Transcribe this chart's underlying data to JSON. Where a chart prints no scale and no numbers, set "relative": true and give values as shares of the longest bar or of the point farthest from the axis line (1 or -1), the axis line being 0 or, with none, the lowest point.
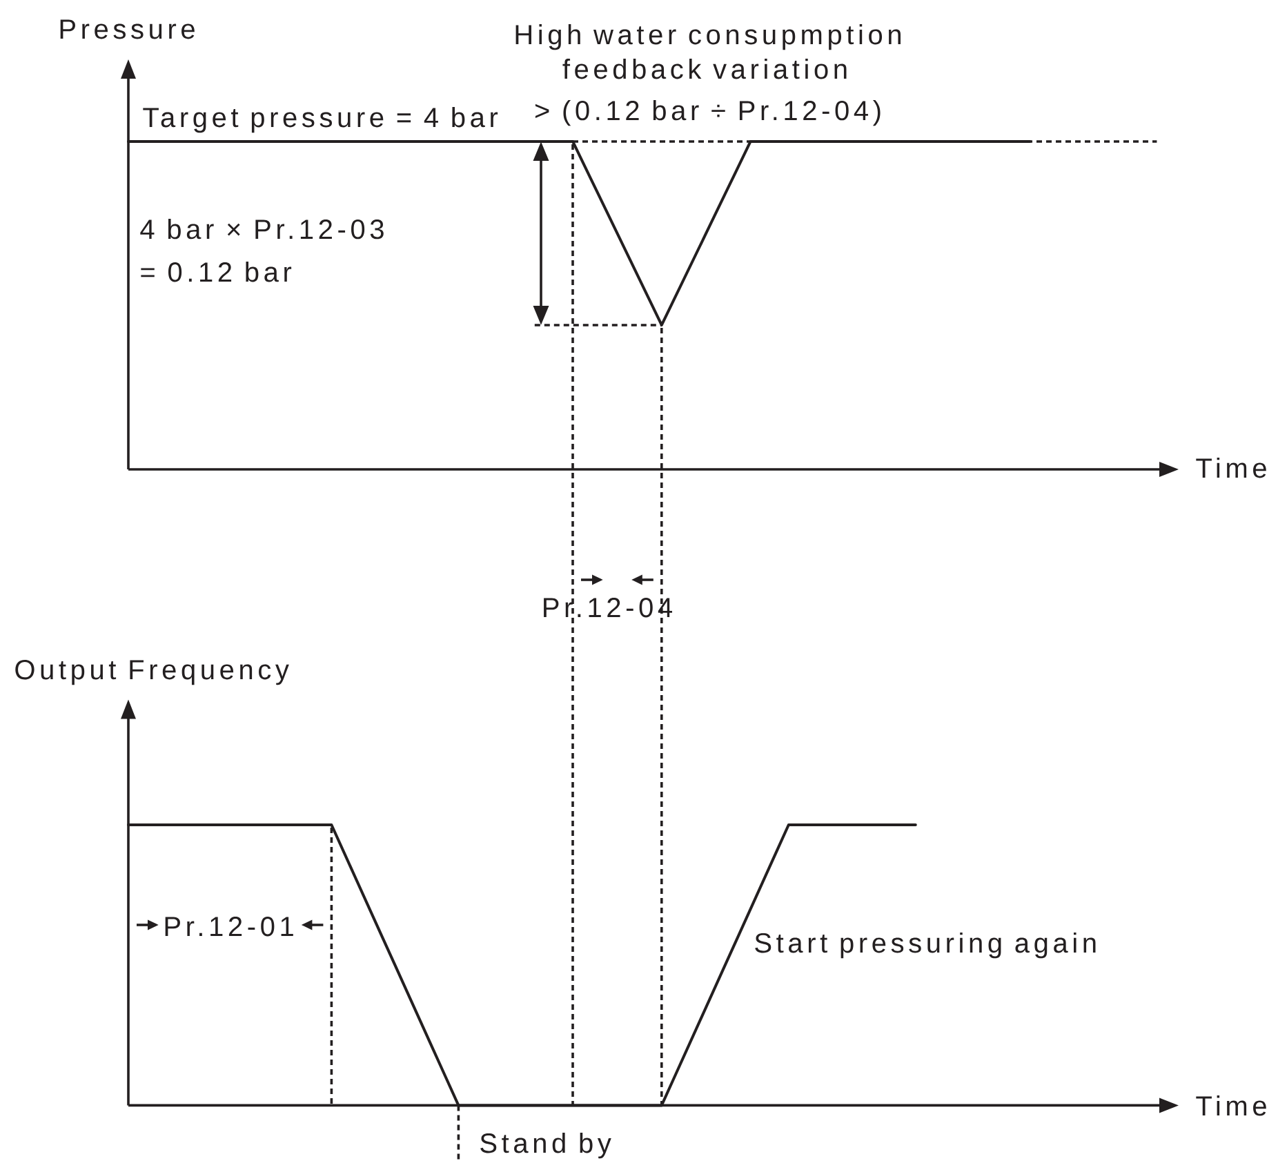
{
  "chart_data": [
    {
      "type": "line",
      "ylabel": "Pressure",
      "xlabel": "Time",
      "relative": true,
      "tick_labels": false,
      "categories": [
        null,
        null,
        null,
        null,
        null,
        null,
        null,
        null,
        null,
        null,
        null,
        null,
        null,
        null,
        null,
        null,
        null,
        null,
        null,
        null,
        null,
        null,
        null,
        null,
        null,
        null,
        null,
        null,
        null,
        null,
        null,
        null,
        null,
        null,
        null,
        null,
        null,
        null,
        null,
        null,
        null,
        null,
        null,
        null,
        null,
        null,
        null,
        null,
        null,
        null,
        null,
        null,
        null,
        null,
        null,
        null,
        null,
        null,
        null,
        null,
        null,
        null,
        null,
        null,
        null,
        null,
        null,
        null,
        null,
        null,
        null,
        null,
        null,
        null,
        null,
        null,
        null,
        null,
        null,
        null,
        null,
        null
      ],
      "series": [
        {
          "color": "#231f20",
          "values": [
            1,
            1,
            1,
            1,
            1,
            1,
            1,
            1,
            1,
            1,
            1,
            1,
            1,
            1,
            1,
            1,
            1,
            1,
            1,
            1,
            1,
            1,
            1,
            1,
            1,
            1,
            1,
            1,
            1,
            1,
            1,
            1,
            1,
            1,
            1,
            1,
            0.92,
            0.84,
            0.76,
            0.68,
            0.6,
            0.52,
            0.44,
            0.52,
            0.6,
            0.68,
            0.76,
            0.84,
            0.92,
            1,
            1,
            1,
            1,
            1,
            1,
            1,
            1,
            1,
            1,
            1,
            1,
            1,
            1,
            1,
            1,
            1,
            1,
            1,
            1,
            1,
            1,
            1,
            null,
            null,
            null,
            null,
            null,
            null,
            null,
            null,
            null,
            null
          ]
        }
      ],
      "ref_lines": [
        {
          "axis": "y",
          "value": 1,
          "line_style": "dashed"
        },
        {
          "axis": "y",
          "value": 0.44,
          "line_style": "dashed"
        }
      ],
      "annotations": [
        "Target pressure = 4 bar",
        "High water consupmption",
        "feedback variation",
        "> (0.12 bar ÷ Pr.12-04)",
        "4 bar × Pr.12-03",
        "= 0.12 bar",
        "Pr.12-04"
      ]
    },
    {
      "type": "line",
      "ylabel": "Output Frequency",
      "xlabel": "Time",
      "relative": true,
      "tick_labels": false,
      "categories": [
        null,
        null,
        null,
        null,
        null,
        null,
        null,
        null,
        null,
        null,
        null,
        null,
        null,
        null,
        null,
        null,
        null,
        null,
        null,
        null,
        null,
        null,
        null,
        null,
        null,
        null,
        null,
        null,
        null,
        null,
        null,
        null,
        null,
        null,
        null,
        null,
        null,
        null,
        null,
        null,
        null,
        null,
        null,
        null,
        null,
        null,
        null,
        null,
        null,
        null,
        null,
        null,
        null,
        null,
        null,
        null,
        null,
        null,
        null,
        null,
        null,
        null,
        null,
        null,
        null,
        null,
        null,
        null,
        null,
        null,
        null,
        null,
        null,
        null,
        null,
        null,
        null,
        null,
        null,
        null,
        null,
        null
      ],
      "series": [
        {
          "color": "#231f20",
          "values": [
            1,
            1,
            1,
            1,
            1,
            1,
            1,
            1,
            1,
            1,
            1,
            1,
            1,
            1,
            1,
            1,
            1,
            0.9,
            0.8,
            0.7,
            0.6,
            0.5,
            0.4,
            0.3,
            0.2,
            0.1,
            0,
            0,
            0,
            0,
            0,
            0,
            0,
            0,
            0,
            0,
            0,
            0,
            0,
            0,
            0,
            0,
            0,
            0.1,
            0.2,
            0.3,
            0.4,
            0.5,
            0.6,
            0.7,
            0.8,
            0.9,
            1,
            1,
            1,
            1,
            1,
            1,
            1,
            1,
            1,
            1,
            1,
            null,
            null,
            null,
            null,
            null,
            null,
            null,
            null,
            null,
            null,
            null,
            null,
            null,
            null,
            null,
            null,
            null,
            null,
            null
          ]
        }
      ],
      "annotations": [
        "Pr.12-01",
        "Start pressuring again",
        "Stand by"
      ]
    }
  ]
}
